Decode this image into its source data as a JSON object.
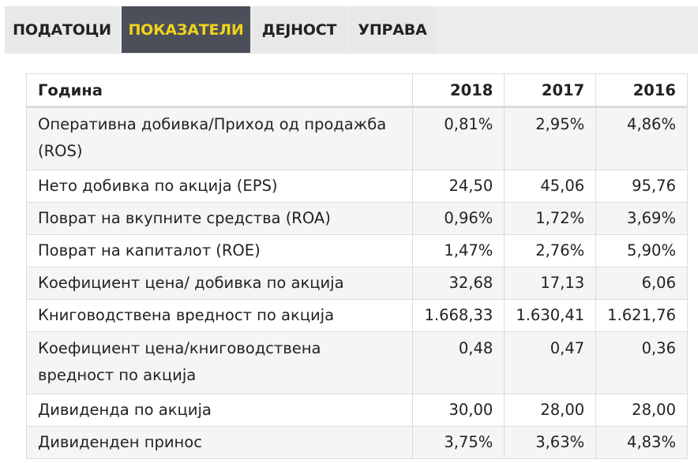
{
  "tabs": [
    {
      "label": "ПОДАТОЦИ",
      "active": false
    },
    {
      "label": "ПОКАЗАТЕЛИ",
      "active": true
    },
    {
      "label": "ДЕЈНОСТ",
      "active": false
    },
    {
      "label": "УПРАВА",
      "active": false
    }
  ],
  "table": {
    "headers": [
      "Година",
      "2018",
      "2017",
      "2016"
    ],
    "rows": [
      {
        "label": "Оперативна добивка/Приход од продажба (ROS)",
        "values": [
          "0,81%",
          "2,95%",
          "4,86%"
        ]
      },
      {
        "label": "Нето добивка по акција (EPS)",
        "values": [
          "24,50",
          "45,06",
          "95,76"
        ]
      },
      {
        "label": "Поврат на вкупните средства (ROA)",
        "values": [
          "0,96%",
          "1,72%",
          "3,69%"
        ]
      },
      {
        "label": "Поврат на капиталот (ROE)",
        "values": [
          "1,47%",
          "2,76%",
          "5,90%"
        ]
      },
      {
        "label": "Коефициент цена/ добивка по акција",
        "values": [
          "32,68",
          "17,13",
          "6,06"
        ]
      },
      {
        "label": "Книговодствена вредност по акција",
        "values": [
          "1.668,33",
          "1.630,41",
          "1.621,76"
        ]
      },
      {
        "label": "Коефициент цена/книговодствена вредност по акција",
        "values": [
          "0,48",
          "0,47",
          "0,36"
        ]
      },
      {
        "label": "Дивиденда по акција",
        "values": [
          "30,00",
          "28,00",
          "28,00"
        ]
      },
      {
        "label": "Дивиденден принос",
        "values": [
          "3,75%",
          "3,63%",
          "4,83%"
        ]
      }
    ]
  },
  "colors": {
    "active_tab_bg": "#4a4f59",
    "active_tab_text": "#f2d21b",
    "inactive_tab_bg": "#e8e8e8",
    "row_stripe": "#f5f5f5"
  }
}
